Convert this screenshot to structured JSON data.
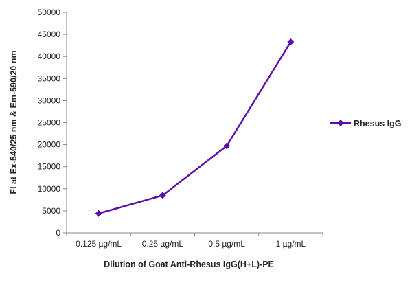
{
  "chart_data": {
    "type": "line",
    "categories": [
      "0.125 µg/mL",
      "0.25 µg/mL",
      "0.5 µg/mL",
      "1 µg/mL"
    ],
    "series": [
      {
        "name": "Rhesus IgG",
        "values": [
          4400,
          8500,
          19700,
          43300
        ],
        "color": "#5b0fa8"
      }
    ],
    "title": "",
    "xlabel": "Dilution of Goat Anti-Rhesus IgG(H+L)-PE",
    "ylabel": "FI at Ex-540/25 nm & Em-590/20 nm",
    "ylim": [
      0,
      50000
    ],
    "yticks": [
      0,
      5000,
      10000,
      15000,
      20000,
      25000,
      30000,
      35000,
      40000,
      45000,
      50000
    ],
    "marker": "diamond",
    "grid": false,
    "legend_position": "right"
  }
}
